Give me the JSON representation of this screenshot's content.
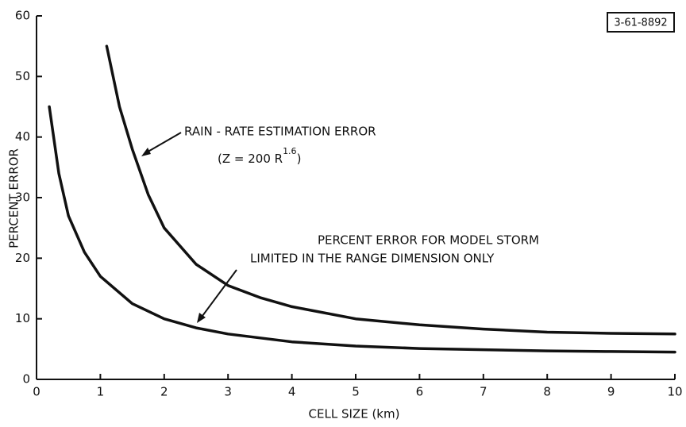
{
  "chart_data": {
    "type": "line",
    "xlabel": "CELL SIZE (km)",
    "ylabel": "PERCENT ERROR",
    "figure_id": "3-61-8892",
    "annotations": [
      "RAIN - RATE ESTIMATION ERROR",
      "(Z = 200 R",
      "1.6",
      ")",
      "PERCENT ERROR FOR MODEL STORM",
      "LIMITED IN THE RANGE DIMENSION ONLY"
    ],
    "series": [
      {
        "color": "#111111",
        "x": [
          1.1,
          1.3,
          1.5,
          1.75,
          2,
          2.5,
          3,
          3.5,
          4,
          5,
          6,
          7,
          8,
          9,
          10
        ],
        "values": [
          55,
          45,
          38,
          30.5,
          25,
          19,
          15.5,
          13.5,
          12,
          10,
          9,
          8.3,
          7.8,
          7.6,
          7.5
        ]
      },
      {
        "color": "#111111",
        "x": [
          0.2,
          0.35,
          0.5,
          0.75,
          1,
          1.5,
          2,
          2.5,
          3,
          4,
          5,
          6,
          7,
          8,
          9,
          10
        ],
        "values": [
          45,
          34,
          27,
          21,
          17,
          12.5,
          10,
          8.5,
          7.5,
          6.2,
          5.5,
          5.1,
          4.9,
          4.7,
          4.6,
          4.5
        ]
      }
    ],
    "xlim": [
      0,
      10
    ],
    "xticks": [
      0,
      1,
      2,
      3,
      4,
      5,
      6,
      7,
      8,
      9,
      10
    ],
    "ylim": [
      0,
      60
    ],
    "yticks": [
      0,
      10,
      20,
      30,
      40,
      50,
      60
    ],
    "grid": false
  }
}
